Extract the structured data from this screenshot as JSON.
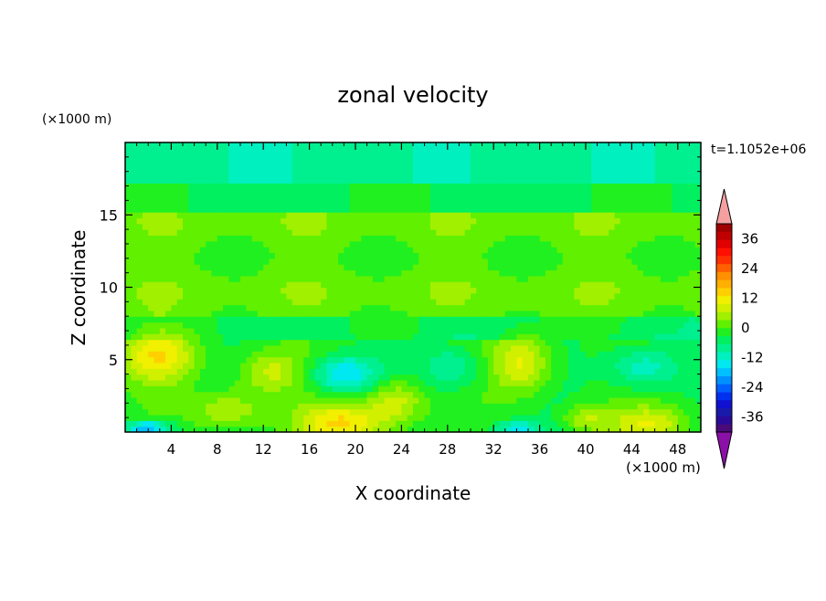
{
  "chart_data": {
    "type": "heatmap",
    "title": "zonal velocity",
    "xlabel": "X coordinate",
    "ylabel": "Z coordinate",
    "x_unit_label": "(×1000 m)",
    "y_unit_label": "(×1000 m)",
    "time_label": "t=1.1052e+06",
    "xlim": [
      0,
      50
    ],
    "ylim": [
      0,
      20
    ],
    "x_ticks": [
      4,
      8,
      12,
      16,
      20,
      24,
      28,
      32,
      36,
      40,
      44,
      48
    ],
    "y_ticks": [
      5,
      10,
      15
    ],
    "x_tick_labels": [
      "4",
      "8",
      "12",
      "16",
      "20",
      "24",
      "28",
      "32",
      "36",
      "40",
      "44",
      "48"
    ],
    "y_tick_labels": [
      "5",
      "10",
      "15"
    ],
    "colorbar": {
      "levels": [
        -42,
        -39,
        -36,
        -33,
        -30,
        -27,
        -24,
        -21,
        -18,
        -15,
        -12,
        -9,
        -6,
        -3,
        0,
        3,
        6,
        9,
        12,
        15,
        18,
        21,
        24,
        27,
        30,
        33,
        36,
        39,
        42
      ],
      "colors": [
        "#4a0a7a",
        "#2a0a9a",
        "#1a1aaa",
        "#1010d0",
        "#0030f0",
        "#0060ff",
        "#0090ff",
        "#00c0ff",
        "#00e8f0",
        "#00f0c0",
        "#00f090",
        "#00f060",
        "#20f020",
        "#60f000",
        "#a0f000",
        "#d0f000",
        "#f0f000",
        "#ffd000",
        "#ffb000",
        "#ff9000",
        "#ff6000",
        "#ff3000",
        "#ff1000",
        "#e00000",
        "#c00000",
        "#a00000"
      ],
      "under_color": "#8a10a8",
      "over_color": "#f5a0a0",
      "tick_labels": [
        "36",
        "24",
        "12",
        "0",
        "-12",
        "-24",
        "-36"
      ],
      "tick_values": [
        36,
        24,
        12,
        0,
        -12,
        -24,
        -36
      ]
    },
    "field_description_values": {
      "blobs": [
        {
          "x": 3,
          "z": 5.3,
          "v": 13,
          "rx": 3.2,
          "rz": 1.8
        },
        {
          "x": 9,
          "z": 1.5,
          "v": 9,
          "rx": 3.0,
          "rz": 1.4
        },
        {
          "x": 12.5,
          "z": 4.2,
          "v": 9,
          "rx": 2.8,
          "rz": 1.5
        },
        {
          "x": 19,
          "z": 0.6,
          "v": 14,
          "rx": 4.0,
          "rz": 1.5
        },
        {
          "x": 23.5,
          "z": 2.2,
          "v": 10,
          "rx": 2.5,
          "rz": 1.5
        },
        {
          "x": 34.5,
          "z": 4.8,
          "v": 12,
          "rx": 2.5,
          "rz": 2.0
        },
        {
          "x": 45.5,
          "z": 0.6,
          "v": 10,
          "rx": 3.5,
          "rz": 1.2
        },
        {
          "x": 40,
          "z": 1.0,
          "v": 8,
          "rx": 2.0,
          "rz": 1.0
        },
        {
          "x": 19,
          "z": 4.0,
          "v": -14,
          "rx": 2.8,
          "rz": 1.3
        },
        {
          "x": 2,
          "z": 0.3,
          "v": -18,
          "rx": 2.0,
          "rz": 0.5
        },
        {
          "x": 34,
          "z": 0.3,
          "v": -12,
          "rx": 2.0,
          "rz": 0.5
        },
        {
          "x": 45,
          "z": 4.5,
          "v": -10,
          "rx": 3.0,
          "rz": 1.5
        },
        {
          "x": 28.5,
          "z": 4.5,
          "v": -8,
          "rx": 2.5,
          "rz": 1.5
        }
      ]
    }
  }
}
